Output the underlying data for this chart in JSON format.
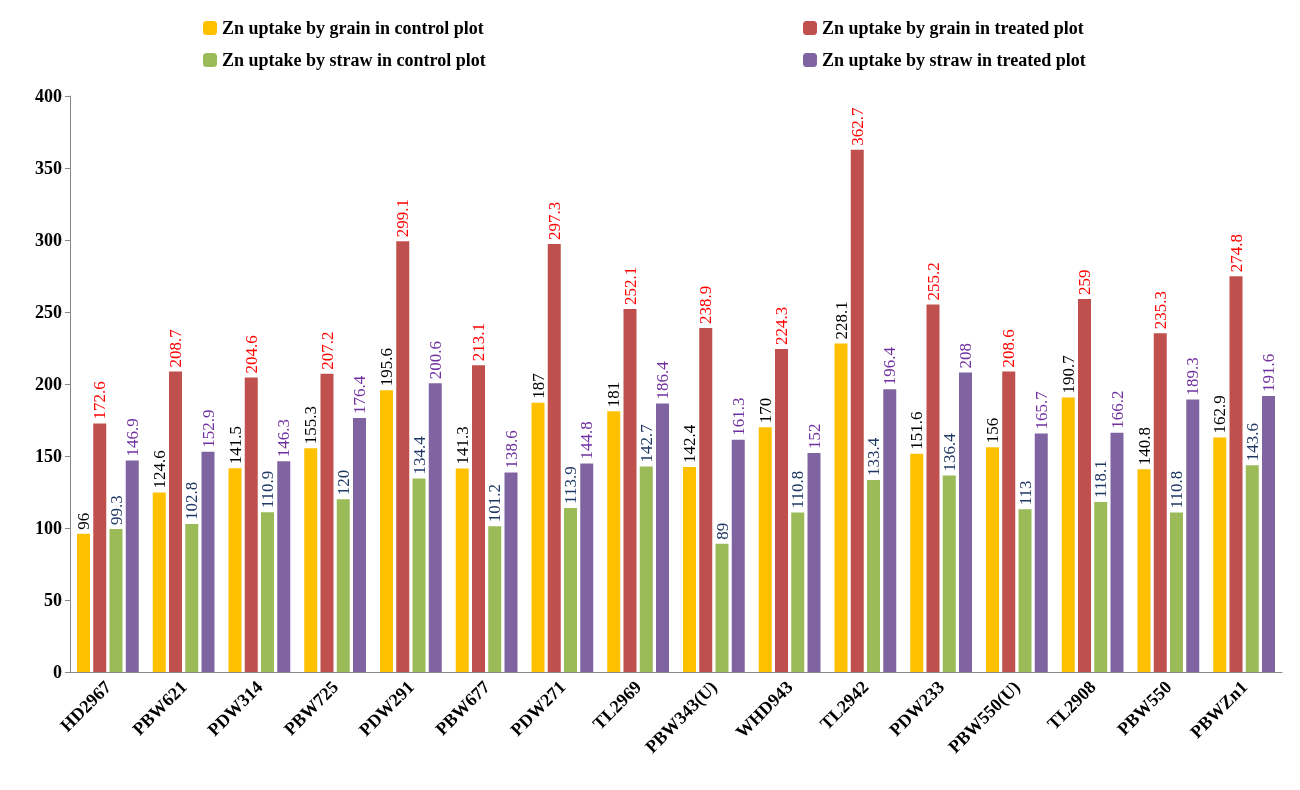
{
  "chart_data": {
    "type": "bar",
    "categories": [
      "HD2967",
      "PBW621",
      "PDW314",
      "PBW725",
      "PDW291",
      "PBW677",
      "PDW271",
      "TL2969",
      "PBW343(U)",
      "WHD943",
      "TL2942",
      "PDW233",
      "PBW550(U)",
      "TL2908",
      "PBW550",
      "PBWZn1"
    ],
    "series": [
      {
        "name": "Zn uptake by grain in control plot",
        "color": "#ffc000",
        "values": [
          96,
          124.6,
          141.5,
          155.3,
          195.6,
          141.3,
          187,
          181,
          142.4,
          170,
          228.1,
          151.6,
          156,
          190.7,
          140.8,
          162.9
        ]
      },
      {
        "name": "Zn uptake by grain in treated plot",
        "color": "#c0504d",
        "values": [
          172.6,
          208.7,
          204.6,
          207.2,
          299.1,
          213.1,
          297.3,
          252.1,
          238.9,
          224.3,
          362.7,
          255.2,
          208.6,
          259,
          235.3,
          274.8
        ]
      },
      {
        "name": "Zn uptake by straw in control plot",
        "color": "#9bbb59",
        "values": [
          99.3,
          102.8,
          110.9,
          120,
          134.4,
          101.2,
          113.9,
          142.7,
          89,
          110.8,
          133.4,
          136.4,
          113,
          118.1,
          110.8,
          143.6
        ]
      },
      {
        "name": "Zn uptake by straw in treated plot",
        "color": "#8064a2",
        "values": [
          146.9,
          152.9,
          146.3,
          176.4,
          200.6,
          138.6,
          144.8,
          186.4,
          161.3,
          152,
          196.4,
          208,
          165.7,
          166.2,
          189.3,
          191.6
        ]
      }
    ],
    "ylim": [
      0,
      400
    ],
    "yticks": [
      0,
      50,
      100,
      150,
      200,
      250,
      300,
      350,
      400
    ],
    "grid": false,
    "legend": "top",
    "data_labels": true
  }
}
